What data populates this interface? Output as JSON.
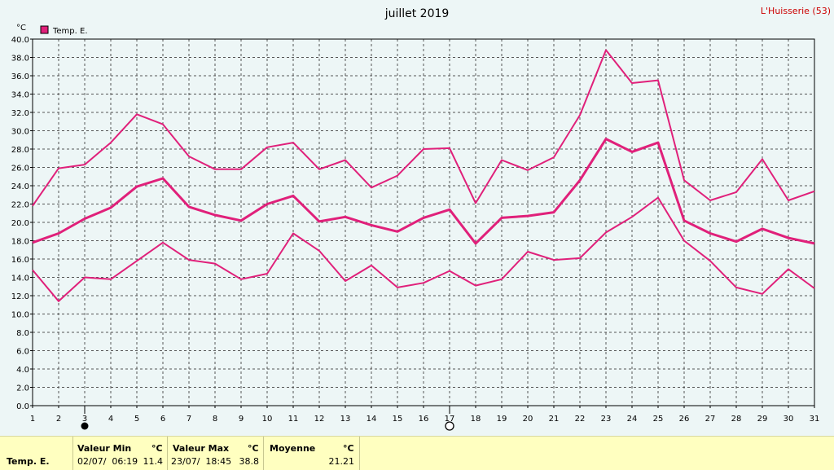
{
  "chart_data": {
    "type": "line",
    "title": "juillet 2019",
    "station": "L'Huisserie (53)",
    "ylabel": "°C",
    "ylim": [
      0,
      40
    ],
    "ytick_step": 2,
    "grid": true,
    "legend_position": "top-left",
    "x": [
      1,
      2,
      3,
      4,
      5,
      6,
      7,
      8,
      9,
      10,
      11,
      12,
      13,
      14,
      15,
      16,
      17,
      18,
      19,
      20,
      21,
      22,
      23,
      24,
      25,
      26,
      27,
      28,
      29,
      30,
      31
    ],
    "series": [
      {
        "name": "Temp. E.",
        "role": "max",
        "color": "#e0207a",
        "values": [
          21.8,
          25.9,
          26.3,
          28.7,
          31.8,
          30.7,
          27.2,
          25.8,
          25.8,
          28.2,
          28.7,
          25.8,
          26.8,
          23.8,
          25.1,
          28.0,
          28.1,
          22.1,
          26.8,
          25.7,
          27.1,
          31.7,
          38.8,
          35.2,
          35.5,
          24.6,
          22.4,
          23.3,
          26.9,
          22.4,
          23.4
        ]
      },
      {
        "name": "",
        "role": "mean",
        "color": "#e0207a",
        "values": [
          17.8,
          18.8,
          20.4,
          21.6,
          23.9,
          24.8,
          21.7,
          20.8,
          20.2,
          22.0,
          22.9,
          20.1,
          20.6,
          19.7,
          19.0,
          20.5,
          21.4,
          17.7,
          20.5,
          20.7,
          21.1,
          24.6,
          29.1,
          27.7,
          28.7,
          20.2,
          18.8,
          17.9,
          19.3,
          18.3,
          17.7
        ]
      },
      {
        "name": "",
        "role": "min",
        "color": "#e0207a",
        "values": [
          14.8,
          11.4,
          14.0,
          13.8,
          15.8,
          17.8,
          15.9,
          15.5,
          13.8,
          14.4,
          18.8,
          16.9,
          13.6,
          15.3,
          12.9,
          13.4,
          14.7,
          13.1,
          13.8,
          16.8,
          15.9,
          16.1,
          18.9,
          20.6,
          22.7,
          18.0,
          15.8,
          12.9,
          12.2,
          14.9,
          12.8
        ]
      }
    ],
    "markers": [
      {
        "day": 3,
        "type": "filled-circle"
      },
      {
        "day": 17,
        "type": "open-circle"
      }
    ]
  },
  "footer": {
    "series_label": "Temp. E.",
    "min": {
      "label": "Valeur Min",
      "unit": "°C",
      "datetime": "02/07/  06:19",
      "value": "11.4"
    },
    "max": {
      "label": "Valeur Max",
      "unit": "°C",
      "datetime": "23/07/  18:45",
      "value": "38.8"
    },
    "avg": {
      "label": "Moyenne",
      "unit": "°C",
      "value": "21.21"
    }
  }
}
